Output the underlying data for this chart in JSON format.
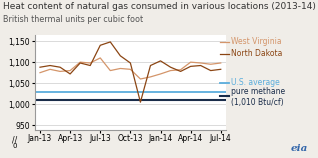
{
  "title": "Heat content of natural gas consumed in various locations (2013-14)",
  "subtitle": "British thermal units per cubic foot",
  "xlabel_ticks": [
    "Jan-13",
    "Apr-13",
    "Jul-13",
    "Oct-13",
    "Jan-14",
    "Apr-14",
    "Jul-14"
  ],
  "ylim": [
    940,
    1165
  ],
  "yticks": [
    950,
    1000,
    1050,
    1100,
    1150
  ],
  "west_virginia": {
    "label": "West Virginia",
    "color": "#d4956a",
    "values": [
      1075,
      1083,
      1078,
      1080,
      1100,
      1098,
      1110,
      1080,
      1085,
      1083,
      1060,
      1065,
      1072,
      1080,
      1082,
      1100,
      1098,
      1095,
      1098
    ]
  },
  "north_dakota": {
    "label": "North Dakota",
    "color": "#8B4513",
    "values": [
      1088,
      1092,
      1088,
      1072,
      1098,
      1092,
      1140,
      1148,
      1115,
      1098,
      1005,
      1092,
      1103,
      1088,
      1078,
      1090,
      1092,
      1080,
      1083
    ]
  },
  "us_average": {
    "label": "U.S. average",
    "color": "#5aaddc",
    "value": 1028
  },
  "pure_methane": {
    "label": "pure methane\n(1,010 Btu/cf)",
    "color": "#1a2d4a",
    "value": 1010
  },
  "background_color": "#f0ede8",
  "plot_bg_color": "#ffffff",
  "title_fontsize": 6.5,
  "subtitle_fontsize": 5.8,
  "axis_fontsize": 5.5,
  "legend_fontsize": 5.5,
  "eia_text": "eia",
  "n_points": 19
}
